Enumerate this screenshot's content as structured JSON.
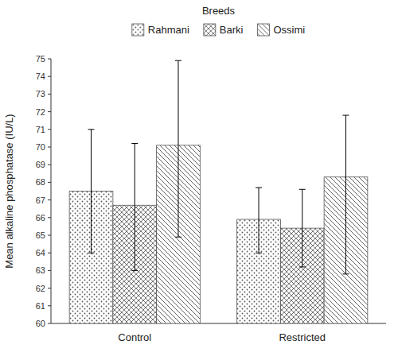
{
  "chart_data": {
    "type": "bar",
    "ylabel": "Mean alkaline phosphatase (IU/L)",
    "categories": [
      "Control",
      "Restricted"
    ],
    "series": [
      {
        "name": "Rahmani",
        "values": [
          67.5,
          65.9
        ],
        "error_upper": [
          3.5,
          1.8
        ],
        "error_lower": [
          3.5,
          1.9
        ]
      },
      {
        "name": "Barki",
        "values": [
          66.7,
          65.4
        ],
        "error_upper": [
          3.5,
          2.2
        ],
        "error_lower": [
          3.7,
          2.2
        ]
      },
      {
        "name": "Ossimi",
        "values": [
          70.1,
          68.3
        ],
        "error_upper": [
          4.8,
          3.5
        ],
        "error_lower": [
          5.2,
          5.5
        ]
      }
    ],
    "color": "#555555",
    "ylim": [
      60,
      75
    ],
    "yticks": [
      60,
      61,
      62,
      63,
      64,
      65,
      66,
      67,
      68,
      69,
      70,
      71,
      72,
      73,
      74,
      75
    ],
    "grid": false,
    "legend": "top",
    "legend_title": "Breeds"
  }
}
